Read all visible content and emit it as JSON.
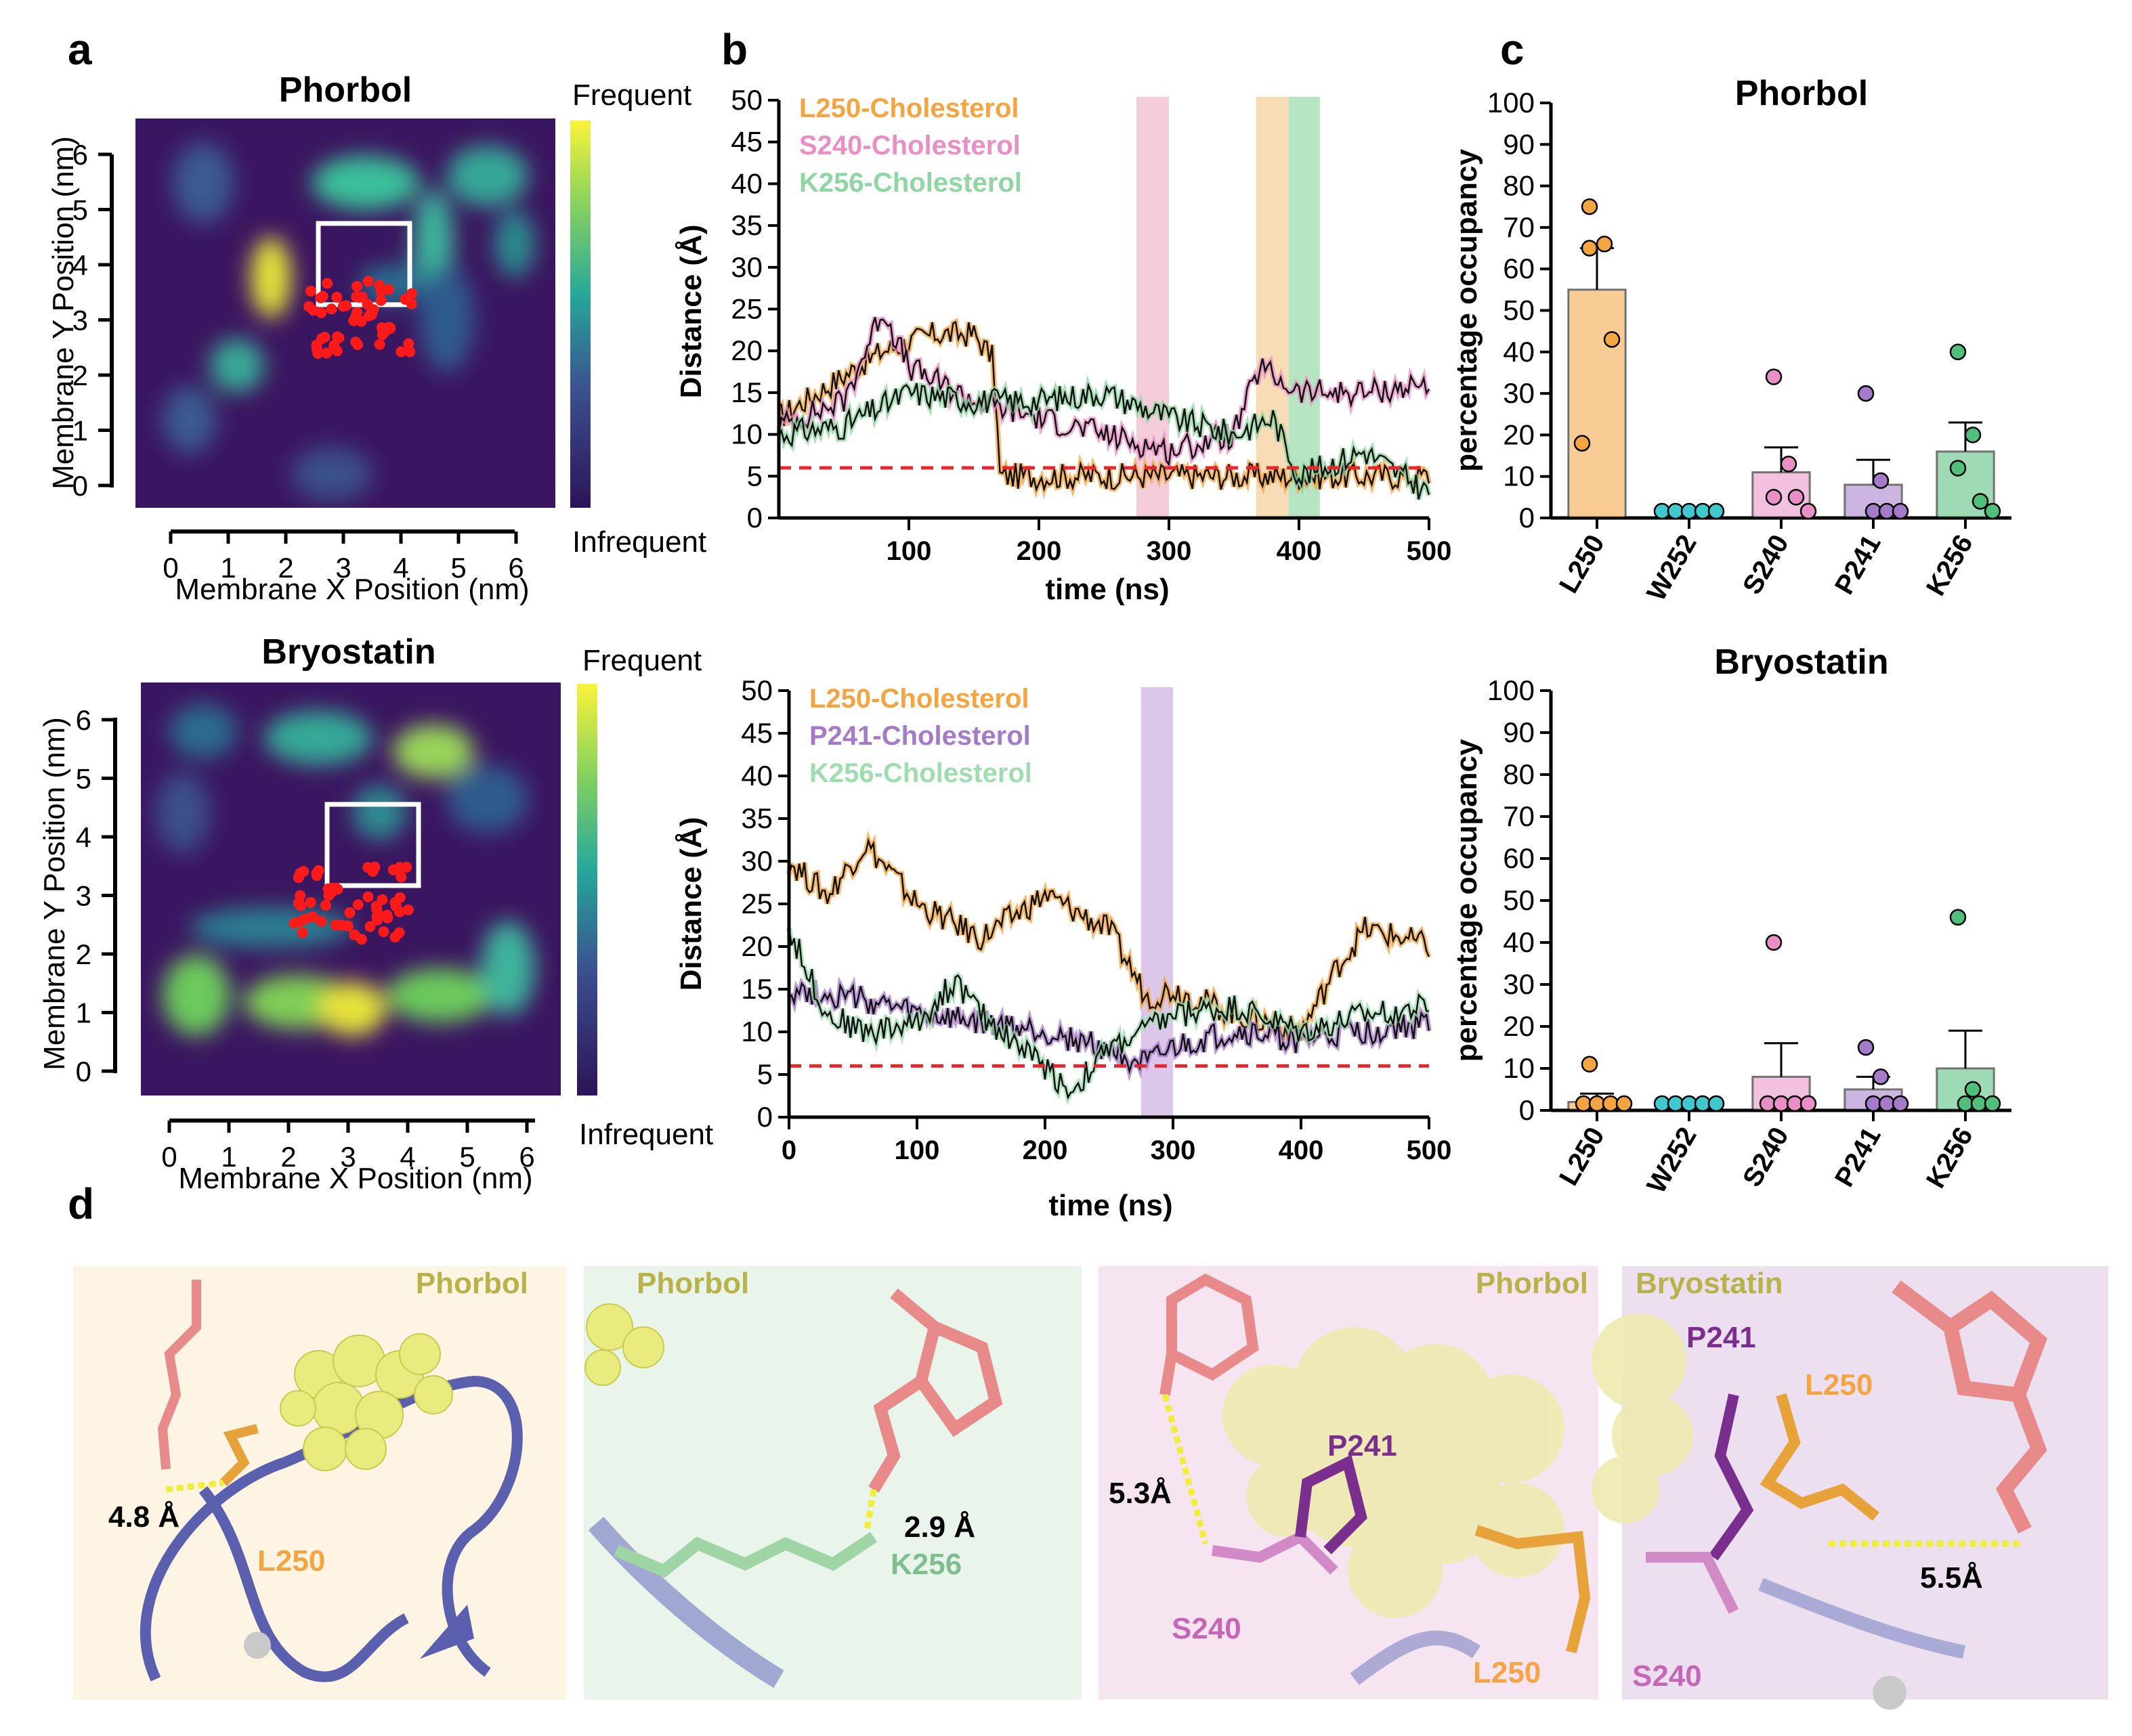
{
  "panel_labels": {
    "a": "a",
    "b": "b",
    "c": "c",
    "d": "d"
  },
  "a": {
    "top": {
      "title": "Phorbol",
      "xlabel": "Membrane X Position (nm)",
      "ylabel": "Membrane Y Position (nm)"
    },
    "bottom": {
      "title": "Bryostatin",
      "xlabel": "Membrane X Position (nm)",
      "ylabel": "Membrane Y Position (nm)"
    },
    "colorbar": {
      "high": "Frequent",
      "low": "Infrequent"
    },
    "xticks": [
      "0",
      "1",
      "2",
      "3",
      "4",
      "5",
      "6"
    ],
    "yticks": [
      "0",
      "1",
      "2",
      "3",
      "4",
      "5",
      "6"
    ],
    "colors": {
      "low": "#3b1660",
      "high": "#f5ef3a",
      "points": "#ff1a1a"
    }
  },
  "b": {
    "top": {
      "xlabel": "time (ns)",
      "ylabel": "Distance (Å)",
      "legend": [
        {
          "label": "L250-Cholesterol",
          "color": "#f5a442"
        },
        {
          "label": "S240-Cholesterol",
          "color": "#e98fc6"
        },
        {
          "label": "K256-Cholesterol",
          "color": "#8fd6a2"
        }
      ]
    },
    "bottom": {
      "xlabel": "time (ns)",
      "ylabel": "Distance (Å)",
      "legend": [
        {
          "label": "L250-Cholesterol",
          "color": "#f5a442"
        },
        {
          "label": "P241-Cholesterol",
          "color": "#a57ac9"
        },
        {
          "label": "K256-Cholesterol",
          "color": "#9fddb0"
        }
      ]
    },
    "xticks_top": [
      "100",
      "200",
      "300",
      "400",
      "500"
    ],
    "xticks_bottom": [
      "0",
      "100",
      "200",
      "300",
      "400",
      "500"
    ],
    "yticks": [
      "0",
      "5",
      "10",
      "15",
      "20",
      "25",
      "30",
      "35",
      "40",
      "45",
      "50"
    ]
  },
  "chart_data": [
    {
      "type": "bar",
      "title": "Phorbol",
      "ylabel": "percentage occupancy",
      "ylim": [
        0,
        100
      ],
      "categories": [
        "L250",
        "W252",
        "S240",
        "P241",
        "K256"
      ],
      "values": [
        55,
        0,
        11,
        8,
        16
      ],
      "sem": [
        10,
        0,
        6,
        6,
        7
      ],
      "points": [
        [
          75,
          66,
          65,
          43,
          18
        ],
        [
          0,
          0,
          0,
          0,
          0
        ],
        [
          34,
          13,
          5,
          5,
          0
        ],
        [
          30,
          9,
          0,
          0,
          0
        ],
        [
          40,
          20,
          12,
          4,
          0
        ]
      ],
      "colors": [
        "#f5a442",
        "#3fc9cf",
        "#e98fc6",
        "#a57ac9",
        "#4fbf79"
      ]
    },
    {
      "type": "bar",
      "title": "Bryostatin",
      "ylabel": "percentage occupancy",
      "ylim": [
        0,
        100
      ],
      "categories": [
        "L250",
        "W252",
        "S240",
        "P241",
        "K256"
      ],
      "values": [
        2,
        0,
        8,
        5,
        10
      ],
      "sem": [
        2,
        0,
        8,
        3,
        9
      ],
      "points": [
        [
          11,
          0,
          0,
          0,
          0
        ],
        [
          0,
          0,
          0,
          0,
          0
        ],
        [
          40,
          0,
          0,
          0,
          0
        ],
        [
          15,
          8,
          0,
          0,
          0
        ],
        [
          46,
          5,
          0,
          0,
          0
        ]
      ],
      "colors": [
        "#f5a442",
        "#3fc9cf",
        "#e98fc6",
        "#a57ac9",
        "#4fbf79"
      ]
    },
    {
      "type": "line",
      "xlabel": "time (ns)",
      "ylabel": "Distance (Å)",
      "ylim": [
        0,
        50
      ],
      "xlim": [
        0,
        500
      ],
      "threshold": 6,
      "series": [
        {
          "name": "L250-Cholesterol",
          "x": [
            0,
            40,
            80,
            120,
            150,
            165,
            170,
            200,
            250,
            300,
            350,
            400,
            450,
            500
          ],
          "y": [
            12,
            16,
            20,
            22,
            22,
            19,
            5,
            5,
            5,
            5,
            5,
            5,
            5,
            5
          ]
        },
        {
          "name": "S240-Cholesterol",
          "x": [
            0,
            50,
            80,
            100,
            150,
            200,
            250,
            300,
            350,
            370,
            400,
            450,
            500
          ],
          "y": [
            11,
            14,
            25,
            18,
            14,
            12,
            10,
            8,
            10,
            18,
            15,
            15,
            16
          ]
        },
        {
          "name": "K256-Cholesterol",
          "x": [
            0,
            50,
            100,
            150,
            200,
            250,
            300,
            350,
            380,
            400,
            450,
            500
          ],
          "y": [
            10,
            11,
            15,
            14,
            14,
            15,
            12,
            10,
            12,
            5,
            8,
            3
          ]
        }
      ],
      "highlight_ranges": [
        [
          275,
          300
        ],
        [
          367,
          392
        ],
        [
          392,
          416
        ]
      ]
    },
    {
      "type": "line",
      "xlabel": "time (ns)",
      "ylabel": "Distance (Å)",
      "ylim": [
        0,
        50
      ],
      "xlim": [
        0,
        500
      ],
      "threshold": 6,
      "series": [
        {
          "name": "L250-Cholesterol",
          "x": [
            0,
            30,
            60,
            100,
            150,
            200,
            250,
            280,
            300,
            350,
            400,
            430,
            450,
            480,
            500
          ],
          "y": [
            30,
            26,
            32,
            25,
            21,
            26,
            22,
            14,
            15,
            12,
            10,
            18,
            22,
            21,
            20
          ]
        },
        {
          "name": "P241-Cholesterol",
          "x": [
            0,
            50,
            100,
            150,
            200,
            250,
            280,
            300,
            350,
            400,
            450,
            500
          ],
          "y": [
            15,
            14,
            12,
            11,
            10,
            8,
            6,
            8,
            10,
            9,
            10,
            11
          ]
        },
        {
          "name": "K256-Cholesterol",
          "x": [
            0,
            30,
            60,
            100,
            130,
            150,
            200,
            220,
            250,
            300,
            350,
            400,
            450,
            500
          ],
          "y": [
            22,
            12,
            10,
            11,
            16,
            12,
            6,
            3,
            8,
            12,
            13,
            10,
            12,
            13
          ]
        }
      ],
      "highlight_ranges": [
        [
          275,
          300
        ]
      ]
    }
  ],
  "d": {
    "panels": [
      {
        "ligand": "Phorbol",
        "distance": "4.8 Å",
        "residues": [
          {
            "name": "L250",
            "color": "#f5a442"
          }
        ],
        "bg": "#fdf4e3"
      },
      {
        "ligand": "Phorbol",
        "distance": "2.9 Å",
        "residues": [
          {
            "name": "K256",
            "color": "#7fbf8f"
          }
        ],
        "bg": "#e9f4ea"
      },
      {
        "ligand": "Phorbol",
        "distance": "5.3Å",
        "residues": [
          {
            "name": "P241",
            "color": "#7a2f8f"
          },
          {
            "name": "S240",
            "color": "#c468b6"
          },
          {
            "name": "L250",
            "color": "#f5a442"
          }
        ],
        "bg": "#f7e4f1"
      },
      {
        "ligand": "Bryostatin",
        "distance": "5.5Å",
        "residues": [
          {
            "name": "P241",
            "color": "#7a2f8f"
          },
          {
            "name": "L250",
            "color": "#f5a442"
          },
          {
            "name": "S240",
            "color": "#c468b6"
          }
        ],
        "bg": "#ecdff0"
      }
    ],
    "ligand_color": "#b8b24a"
  }
}
